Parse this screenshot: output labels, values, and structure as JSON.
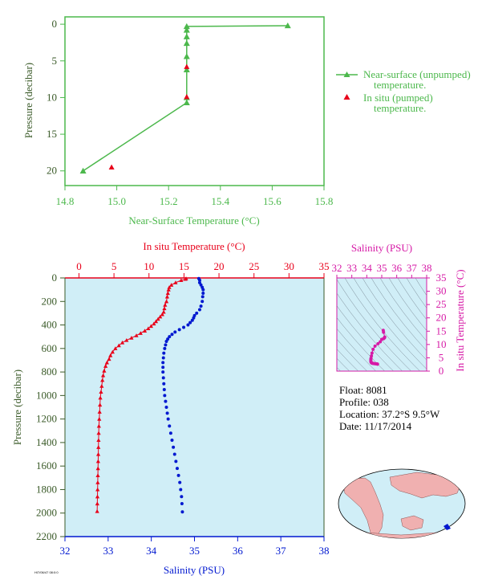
{
  "colors": {
    "green": "#4cb84c",
    "red": "#e8001a",
    "blue": "#0018d0",
    "magenta": "#d61aa6",
    "dark_green": "#3a5a28",
    "plot_bg": "#d0eef7",
    "map_ocean": "#d0eef7",
    "map_land": "#f0b0b0"
  },
  "info": {
    "float": "Float: 8081",
    "profile": "Profile: 038",
    "location": "Location: 37.2°S 9.5°W",
    "date": "Date: 11/17/2014"
  },
  "stamp": "HI7/06/47 08:0:0",
  "chart_data": [
    {
      "type": "line",
      "name": "near-surface-panel",
      "xlabel": "Near-Surface Temperature (°C)",
      "ylabel": "Pressure (decibar)",
      "xlim": [
        14.8,
        15.8
      ],
      "ylim": [
        22,
        -1
      ],
      "x_ticks": [
        "14.8",
        "15.0",
        "15.2",
        "15.4",
        "15.6",
        "15.8"
      ],
      "x_tick_values": [
        14.8,
        15.0,
        15.2,
        15.4,
        15.6,
        15.8
      ],
      "y_ticks": [
        "0",
        "5",
        "10",
        "15",
        "20"
      ],
      "y_tick_values": [
        0,
        5,
        10,
        15,
        20
      ],
      "legend": {
        "placement": "right",
        "items": [
          {
            "label_lines": [
              "Near-surface (unpumped)",
              "temperature."
            ],
            "marker": "line-triangle",
            "color": "#4cb84c"
          },
          {
            "label_lines": [
              "In situ (pumped)",
              "temperature."
            ],
            "marker": "triangle",
            "color": "#e8001a"
          }
        ]
      },
      "series": [
        {
          "name": "Near-surface (unpumped) temperature.",
          "color": "#4cb84c",
          "points": [
            [
              15.66,
              0.2
            ],
            [
              15.27,
              0.3
            ],
            [
              15.27,
              0.8
            ],
            [
              15.27,
              1.7
            ],
            [
              15.27,
              2.6
            ],
            [
              15.27,
              4.4
            ],
            [
              15.27,
              6.2
            ],
            [
              15.27,
              10.0
            ],
            [
              15.27,
              10.7
            ],
            [
              14.87,
              20.0
            ]
          ]
        },
        {
          "name": "In situ (pumped) temperature.",
          "color": "#e8001a",
          "points": [
            [
              15.27,
              5.8
            ],
            [
              15.27,
              9.9
            ],
            [
              14.98,
              19.5
            ]
          ]
        }
      ]
    },
    {
      "type": "line",
      "name": "profile-panel",
      "ylabel": "Pressure (decibar)",
      "top_xlabel": "In situ Temperature (°C)",
      "bottom_xlabel": "Salinity (PSU)",
      "top_xlim": [
        -2,
        35
      ],
      "bottom_xlim": [
        32,
        38
      ],
      "ylim": [
        2200,
        0
      ],
      "top_x_ticks": [
        "0",
        "5",
        "10",
        "15",
        "20",
        "25",
        "30",
        "35"
      ],
      "top_x_tick_values": [
        0,
        5,
        10,
        15,
        20,
        25,
        30,
        35
      ],
      "bottom_x_ticks": [
        "32",
        "33",
        "34",
        "35",
        "36",
        "37",
        "38"
      ],
      "bottom_x_tick_values": [
        32,
        33,
        34,
        35,
        36,
        37,
        38
      ],
      "y_ticks": [
        "0",
        "200",
        "400",
        "600",
        "800",
        "1000",
        "1200",
        "1400",
        "1600",
        "1800",
        "2000",
        "2200"
      ],
      "y_tick_values": [
        0,
        200,
        400,
        600,
        800,
        1000,
        1200,
        1400,
        1600,
        1800,
        2000,
        2200
      ],
      "temperature": {
        "color": "#e8001a",
        "points": [
          [
            15.3,
            5
          ],
          [
            15.2,
            10
          ],
          [
            14.6,
            20
          ],
          [
            13.8,
            40
          ],
          [
            13.2,
            60
          ],
          [
            12.9,
            80
          ],
          [
            12.8,
            100
          ],
          [
            12.7,
            130
          ],
          [
            12.6,
            160
          ],
          [
            12.5,
            200
          ],
          [
            12.3,
            230
          ],
          [
            12.2,
            260
          ],
          [
            12.1,
            290
          ],
          [
            11.9,
            310
          ],
          [
            11.6,
            330
          ],
          [
            11.3,
            350
          ],
          [
            11.0,
            370
          ],
          [
            10.7,
            390
          ],
          [
            10.3,
            410
          ],
          [
            9.9,
            430
          ],
          [
            9.4,
            450
          ],
          [
            8.8,
            470
          ],
          [
            8.2,
            490
          ],
          [
            7.5,
            510
          ],
          [
            6.8,
            530
          ],
          [
            6.2,
            550
          ],
          [
            5.7,
            575
          ],
          [
            5.2,
            600
          ],
          [
            4.8,
            630
          ],
          [
            4.5,
            660
          ],
          [
            4.3,
            690
          ],
          [
            4.0,
            720
          ],
          [
            3.8,
            750
          ],
          [
            3.6,
            790
          ],
          [
            3.45,
            830
          ],
          [
            3.35,
            870
          ],
          [
            3.25,
            920
          ],
          [
            3.15,
            970
          ],
          [
            3.05,
            1020
          ],
          [
            3.0,
            1080
          ],
          [
            2.95,
            1140
          ],
          [
            2.9,
            1200
          ],
          [
            2.85,
            1260
          ],
          [
            2.82,
            1320
          ],
          [
            2.8,
            1380
          ],
          [
            2.78,
            1440
          ],
          [
            2.76,
            1500
          ],
          [
            2.74,
            1560
          ],
          [
            2.72,
            1620
          ],
          [
            2.7,
            1680
          ],
          [
            2.68,
            1740
          ],
          [
            2.66,
            1800
          ],
          [
            2.64,
            1860
          ],
          [
            2.62,
            1920
          ],
          [
            2.6,
            1985
          ]
        ]
      },
      "salinity": {
        "color": "#0018d0",
        "points": [
          [
            35.1,
            5
          ],
          [
            35.12,
            20
          ],
          [
            35.12,
            40
          ],
          [
            35.15,
            60
          ],
          [
            35.18,
            80
          ],
          [
            35.2,
            100
          ],
          [
            35.2,
            130
          ],
          [
            35.19,
            160
          ],
          [
            35.18,
            200
          ],
          [
            35.15,
            240
          ],
          [
            35.12,
            270
          ],
          [
            35.05,
            300
          ],
          [
            35.0,
            320
          ],
          [
            34.98,
            340
          ],
          [
            34.95,
            360
          ],
          [
            34.9,
            380
          ],
          [
            34.85,
            400
          ],
          [
            34.75,
            420
          ],
          [
            34.65,
            440
          ],
          [
            34.55,
            460
          ],
          [
            34.48,
            480
          ],
          [
            34.42,
            500
          ],
          [
            34.38,
            520
          ],
          [
            34.35,
            540
          ],
          [
            34.33,
            570
          ],
          [
            34.31,
            600
          ],
          [
            34.29,
            640
          ],
          [
            34.28,
            680
          ],
          [
            34.27,
            720
          ],
          [
            34.27,
            760
          ],
          [
            34.27,
            800
          ],
          [
            34.28,
            850
          ],
          [
            34.29,
            900
          ],
          [
            34.3,
            950
          ],
          [
            34.31,
            1000
          ],
          [
            34.33,
            1050
          ],
          [
            34.35,
            1100
          ],
          [
            34.37,
            1150
          ],
          [
            34.39,
            1200
          ],
          [
            34.42,
            1260
          ],
          [
            34.45,
            1320
          ],
          [
            34.48,
            1380
          ],
          [
            34.51,
            1440
          ],
          [
            34.54,
            1500
          ],
          [
            34.57,
            1560
          ],
          [
            34.6,
            1620
          ],
          [
            34.63,
            1680
          ],
          [
            34.66,
            1740
          ],
          [
            34.68,
            1800
          ],
          [
            34.7,
            1860
          ],
          [
            34.71,
            1920
          ],
          [
            34.72,
            1990
          ]
        ]
      }
    },
    {
      "type": "scatter",
      "name": "ts-diagram",
      "top_xlabel": "Salinity (PSU)",
      "right_ylabel": "In situ Temperature (°C)",
      "xlim": [
        32,
        38
      ],
      "ylim": [
        0,
        35
      ],
      "x_ticks": [
        "32",
        "33",
        "34",
        "35",
        "36",
        "37",
        "38"
      ],
      "x_tick_values": [
        32,
        33,
        34,
        35,
        36,
        37,
        38
      ],
      "y_ticks": [
        "0",
        "5",
        "10",
        "15",
        "20",
        "25",
        "30",
        "35"
      ],
      "y_tick_values": [
        0,
        5,
        10,
        15,
        20,
        25,
        30,
        35
      ],
      "color": "#d61aa6",
      "points": [
        [
          35.1,
          15.3
        ],
        [
          35.12,
          14.6
        ],
        [
          35.2,
          12.8
        ],
        [
          35.18,
          12.5
        ],
        [
          35.12,
          12.2
        ],
        [
          35.0,
          11.9
        ],
        [
          34.9,
          11.0
        ],
        [
          34.75,
          10.3
        ],
        [
          34.55,
          9.4
        ],
        [
          34.42,
          8.2
        ],
        [
          34.35,
          6.8
        ],
        [
          34.31,
          5.7
        ],
        [
          34.28,
          4.8
        ],
        [
          34.27,
          4.3
        ],
        [
          34.27,
          3.8
        ],
        [
          34.28,
          3.45
        ],
        [
          34.3,
          3.25
        ],
        [
          34.33,
          3.05
        ],
        [
          34.37,
          2.95
        ],
        [
          34.42,
          2.9
        ],
        [
          34.48,
          2.82
        ],
        [
          34.54,
          2.78
        ],
        [
          34.6,
          2.74
        ],
        [
          34.66,
          2.7
        ],
        [
          34.7,
          2.66
        ],
        [
          34.72,
          2.6
        ]
      ]
    }
  ]
}
